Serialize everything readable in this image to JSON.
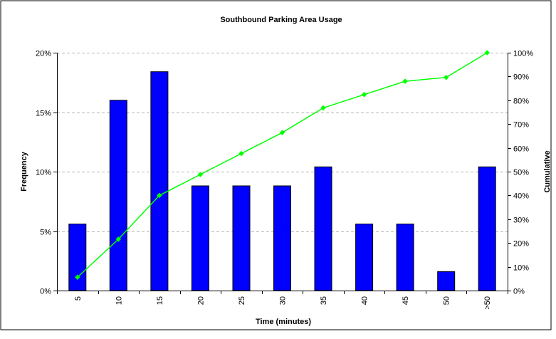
{
  "chart_data": {
    "type": "bar",
    "title": "Southbound Parking Area Usage",
    "xlabel": "Time (minutes)",
    "ylabel": "Frequency",
    "y2label": "Cumulative",
    "categories": [
      "5",
      "10",
      "15",
      "20",
      "25",
      "30",
      "35",
      "40",
      "45",
      "50",
      ">50"
    ],
    "series": [
      {
        "type": "bar",
        "axis": "left",
        "values": [
          0.056,
          0.16,
          0.184,
          0.088,
          0.088,
          0.088,
          0.104,
          0.056,
          0.056,
          0.016,
          0.104
        ],
        "color": "#0000ff"
      },
      {
        "type": "line",
        "axis": "right",
        "values": [
          0.056,
          0.216,
          0.4,
          0.488,
          0.576,
          0.664,
          0.768,
          0.824,
          0.88,
          0.896,
          1.0
        ],
        "color": "#00ff00"
      }
    ],
    "ylim": [
      0,
      0.2
    ],
    "yticks": [
      0,
      0.05,
      0.1,
      0.15,
      0.2
    ],
    "ytick_labels": [
      "0%",
      "5%",
      "10%",
      "15%",
      "20%"
    ],
    "y2lim": [
      0,
      1
    ],
    "y2ticks": [
      0,
      0.1,
      0.2,
      0.3,
      0.4,
      0.5,
      0.6,
      0.7,
      0.8,
      0.9,
      1.0
    ],
    "y2tick_labels": [
      "0%",
      "10%",
      "20%",
      "30%",
      "40%",
      "50%",
      "60%",
      "70%",
      "80%",
      "90%",
      "100%"
    ],
    "grid": true,
    "legend": "none",
    "colors": {
      "bar": "#0000ff",
      "bar_border": "#000000",
      "line": "#00ff00",
      "grid": "#b4b4b4",
      "frame": "#000000"
    }
  }
}
